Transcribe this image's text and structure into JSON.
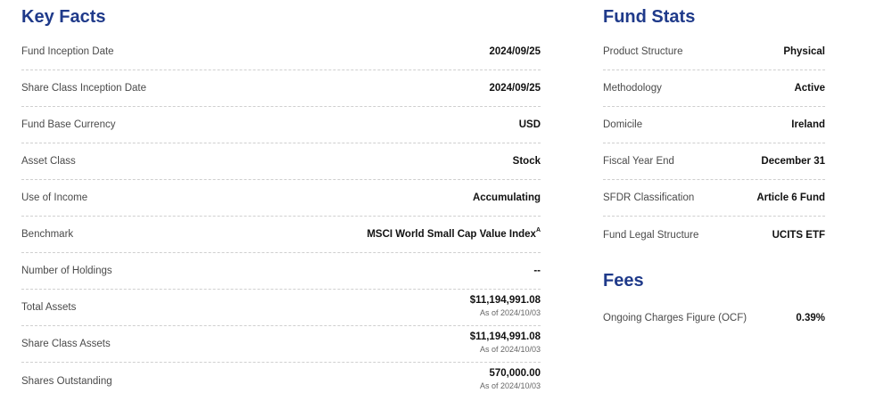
{
  "key_facts": {
    "title": "Key Facts",
    "rows": [
      {
        "label": "Fund Inception Date",
        "value": "2024/09/25"
      },
      {
        "label": "Share Class Inception Date",
        "value": "2024/09/25"
      },
      {
        "label": "Fund Base Currency",
        "value": "USD"
      },
      {
        "label": "Asset Class",
        "value": "Stock"
      },
      {
        "label": "Use of Income",
        "value": "Accumulating"
      },
      {
        "label": "Benchmark",
        "value": "MSCI World Small Cap Value Index",
        "superscript": "A"
      },
      {
        "label": "Number of Holdings",
        "value": "--"
      },
      {
        "label": "Total Assets",
        "value": "$11,194,991.08",
        "as_of": "As of 2024/10/03"
      },
      {
        "label": "Share Class Assets",
        "value": "$11,194,991.08",
        "as_of": "As of 2024/10/03"
      },
      {
        "label": "Shares Outstanding",
        "value": "570,000.00",
        "as_of": "As of 2024/10/03"
      }
    ]
  },
  "fund_stats": {
    "title": "Fund Stats",
    "rows": [
      {
        "label": "Product Structure",
        "value": "Physical"
      },
      {
        "label": "Methodology",
        "value": "Active"
      },
      {
        "label": "Domicile",
        "value": "Ireland"
      },
      {
        "label": "Fiscal Year End",
        "value": "December 31"
      },
      {
        "label": "SFDR Classification",
        "value": "Article 6 Fund"
      },
      {
        "label": "Fund Legal Structure",
        "value": "UCITS ETF"
      }
    ]
  },
  "fees": {
    "title": "Fees",
    "rows": [
      {
        "label": "Ongoing Charges Figure (OCF)",
        "value": "0.39%"
      }
    ]
  },
  "colors": {
    "heading": "#1f3a8a",
    "label": "#4a4a4a",
    "value": "#111111",
    "divider": "#cfcfcf"
  }
}
